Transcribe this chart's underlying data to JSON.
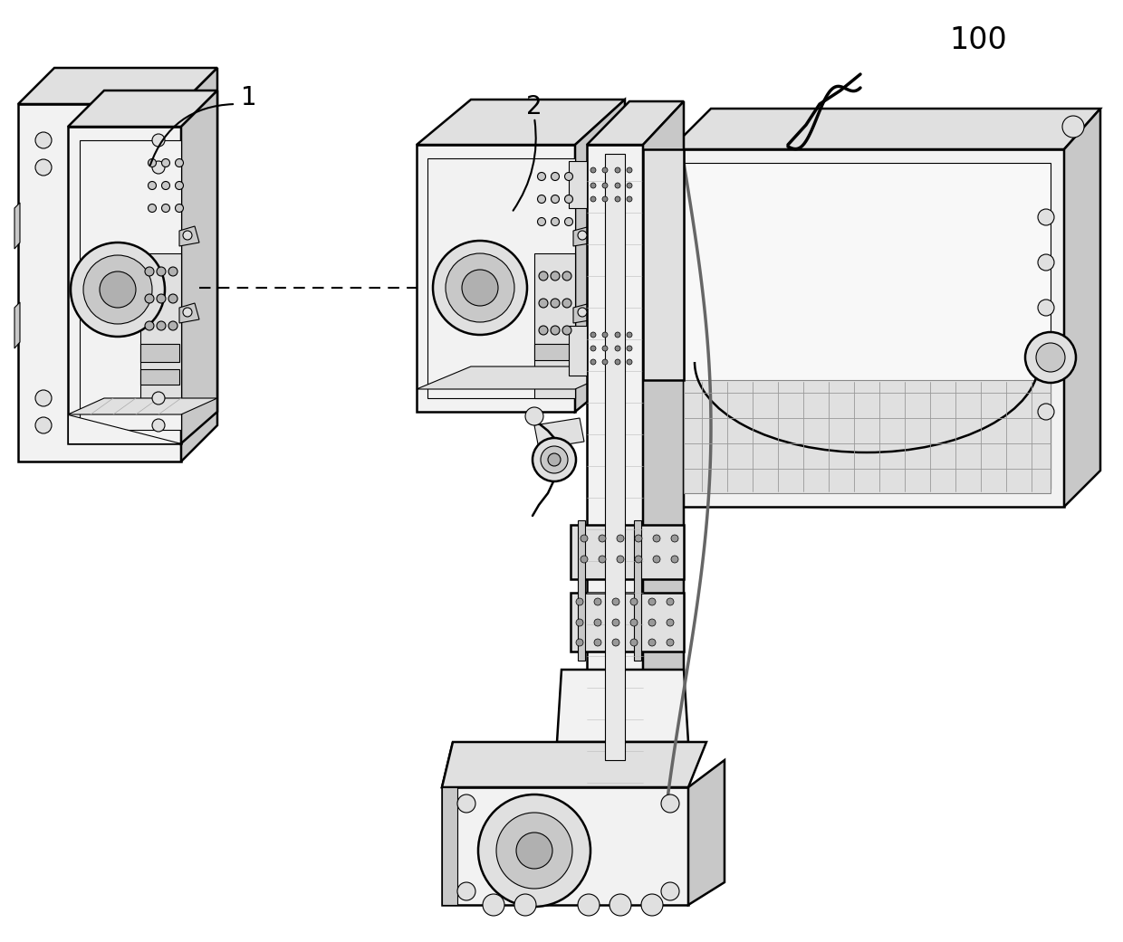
{
  "background_color": "#ffffff",
  "fig_width": 12.4,
  "fig_height": 10.41,
  "dpi": 100,
  "label_1": "1",
  "label_2": "2",
  "label_100": "100",
  "line_color": "#000000",
  "label_fontsize": 20,
  "label_100_fontsize": 24,
  "lw_main": 1.8,
  "lw_thin": 0.8,
  "lw_thick": 2.5,
  "fc_light": "#f2f2f2",
  "fc_mid": "#e0e0e0",
  "fc_dark": "#c8c8c8",
  "fc_darker": "#b0b0b0",
  "fc_white": "#ffffff"
}
